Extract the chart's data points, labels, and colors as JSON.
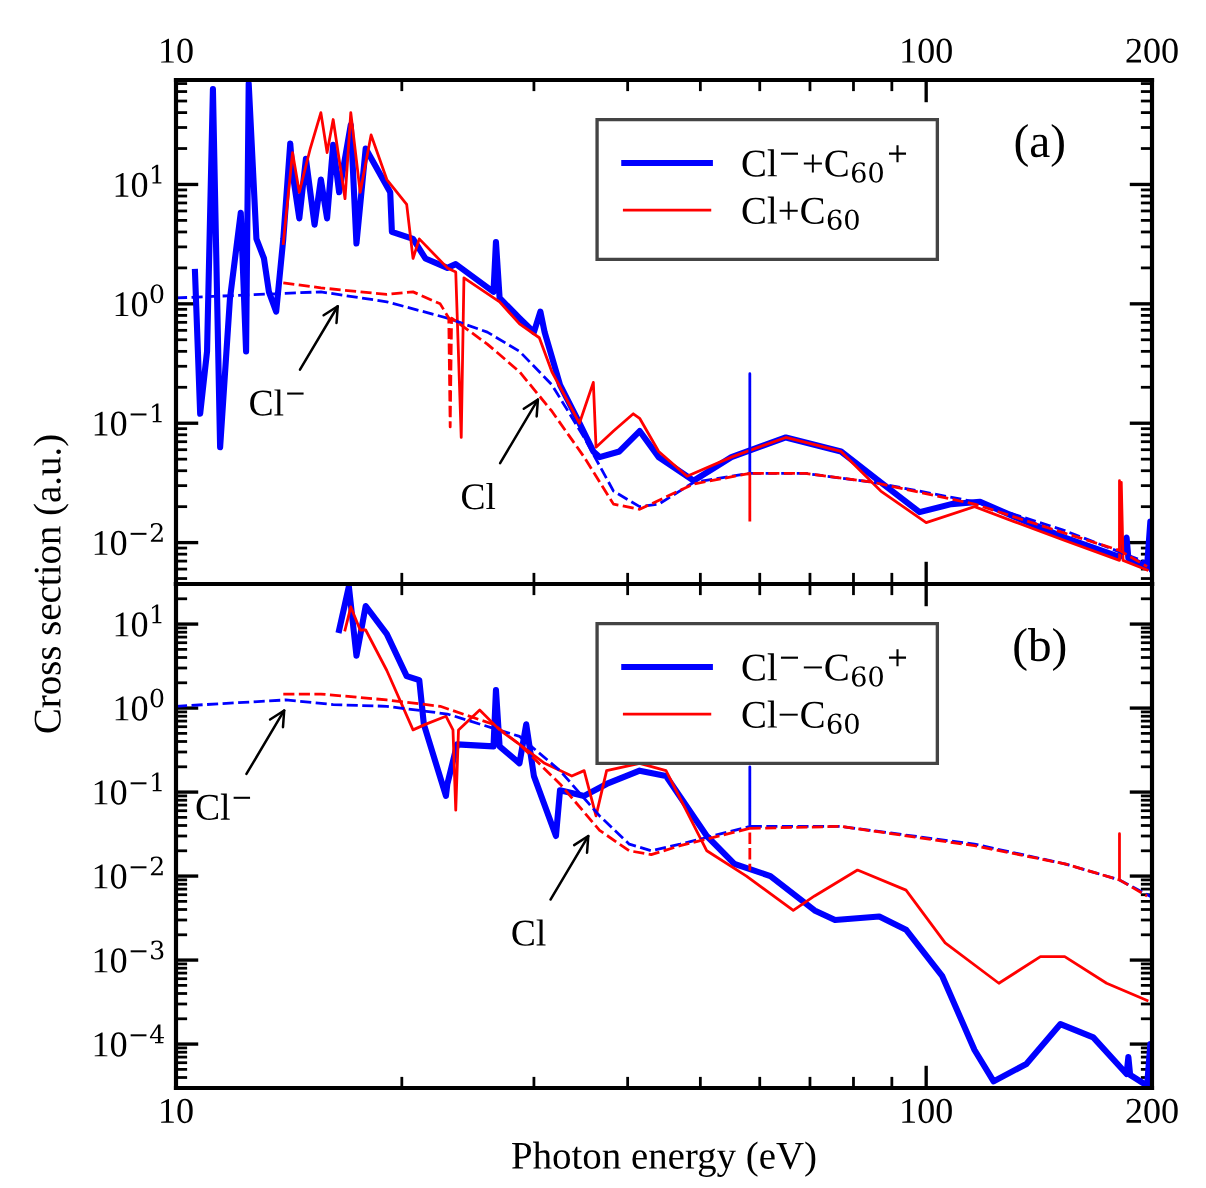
{
  "chart_data": [
    {
      "type": "line",
      "xlim": [
        10,
        200
      ],
      "xticks": [
        10,
        100,
        200
      ],
      "ylim": [
        0.0045,
        75
      ],
      "log": "xy",
      "grid": false,
      "legend": "top right",
      "marker": "none",
      "ylabel": "Cross section (a.u.)",
      "yticks": [
        {
          "value": 0.01,
          "label": "10$^{−2}$"
        },
        {
          "value": 0.1,
          "label": "10$^{−1}$"
        },
        {
          "value": 1,
          "label": "10$^{0}$"
        },
        {
          "value": 10,
          "label": "10$^{1}$"
        }
      ],
      "annotations": [
        "(a)",
        {
          "text": "Cl$^{−}$",
          "x": 16.5,
          "y": 1.0
        },
        {
          "text": "Cl",
          "x": 30.5,
          "y": 0.165
        }
      ],
      "series": [
        {
          "name": "Cl$^{−}$+C$_{60}$$^{+}$",
          "color": "#0000ff",
          "line_style": "solid",
          "x": [
            10.6,
            10.77,
            11.0,
            11.2,
            11.45,
            11.8,
            12.2,
            12.4,
            12.5,
            12.8,
            13.1,
            13.3,
            13.6,
            13.9,
            14.2,
            14.3,
            14.6,
            14.9,
            15.3,
            15.6,
            15.9,
            16.2,
            16.5,
            17.1,
            17.4,
            17.9,
            19.3,
            19.4,
            20.7,
            21.5,
            23.0,
            23.6,
            26.5,
            26.7,
            27.0,
            28.7,
            30.0,
            30.6,
            31.0,
            32.5,
            34.5,
            36.0,
            36.7,
            39.0,
            41.5,
            44,
            49,
            55,
            65,
            77,
            87,
            98,
            108,
            118,
            131,
            153,
            181,
            185,
            186,
            197,
            199,
            200
          ],
          "values": [
            1.85,
            0.12,
            0.4,
            63,
            0.063,
            1.1,
            5.8,
            0.4,
            70,
            3.5,
            2.4,
            1.26,
            0.86,
            3.5,
            22,
            12.6,
            5.2,
            16.4,
            4.6,
            11,
            5.2,
            21.5,
            8.6,
            31.6,
            3.2,
            20,
            8.6,
            4.0,
            3.5,
            2.4,
            2.0,
            2.15,
            1.26,
            3.3,
            1.12,
            0.76,
            0.58,
            0.86,
            0.58,
            0.21,
            0.1,
            0.058,
            0.052,
            0.058,
            0.086,
            0.052,
            0.033,
            0.052,
            0.076,
            0.058,
            0.032,
            0.018,
            0.021,
            0.022,
            0.0165,
            0.011,
            0.0076,
            0.011,
            0.0074,
            0.0063,
            0.015,
            0.006
          ]
        },
        {
          "name": "Cl+C$_{60}$",
          "color": "#ff0000",
          "line_style": "solid",
          "x": [
            13.9,
            14.3,
            14.6,
            15.1,
            15.6,
            15.9,
            16.2,
            16.8,
            17.1,
            17.6,
            18.2,
            19.1,
            20.3,
            20.7,
            21.1,
            23.0,
            23.6,
            24.0,
            24.2,
            27.0,
            28.7,
            30.5,
            31.7,
            34.5,
            36.0,
            36.3,
            38.3,
            40.7,
            41.5,
            44,
            48,
            55,
            65,
            77,
            87,
            100,
            116,
            131,
            153,
            181,
            182,
            183,
            197
          ],
          "values": [
            3.2,
            18.5,
            8.6,
            20,
            40,
            18.5,
            35,
            7.6,
            40,
            8.6,
            26,
            11,
            6.8,
            2.4,
            3.5,
            2.0,
            1.85,
            0.076,
            1.65,
            1.04,
            0.68,
            0.52,
            0.27,
            0.1,
            0.22,
            0.063,
            0.086,
            0.12,
            0.11,
            0.058,
            0.036,
            0.052,
            0.076,
            0.058,
            0.027,
            0.0147,
            0.02,
            0.015,
            0.0104,
            0.0071,
            0.032,
            0.0071,
            0.0059
          ]
        },
        {
          "color": "#0000ff",
          "line_style": "dashed",
          "x": [
            10,
            15.6,
            19.1,
            23,
            26,
            28.7,
            31.7,
            35,
            38.3,
            41.5,
            44,
            49,
            58.2,
            58.2,
            58.2,
            69,
            85,
            116,
            153,
            197
          ],
          "values": [
            1.12,
            1.26,
            1.04,
            0.76,
            0.58,
            0.4,
            0.21,
            0.076,
            0.027,
            0.02,
            0.021,
            0.032,
            0.038,
            0.26,
            0.038,
            0.038,
            0.032,
            0.022,
            0.0126,
            0.0068
          ]
        },
        {
          "color": "#ff0000",
          "line_style": "dashed",
          "x": [
            13.9,
            15.6,
            19.1,
            20.7,
            22.5,
            23.1,
            23.2,
            23.3,
            26,
            28.7,
            31.7,
            35,
            38.3,
            41.5,
            49,
            58.2,
            58.2,
            58.2,
            69,
            85,
            116,
            153,
            181,
            181,
            181,
            197
          ],
          "values": [
            1.5,
            1.36,
            1.2,
            1.26,
            1.0,
            0.76,
            0.093,
            0.76,
            0.46,
            0.27,
            0.126,
            0.052,
            0.021,
            0.019,
            0.031,
            0.038,
            0.015,
            0.038,
            0.038,
            0.032,
            0.021,
            0.012,
            0.0086,
            0.033,
            0.0086,
            0.0063
          ]
        }
      ]
    },
    {
      "type": "line",
      "xlim": [
        10,
        200
      ],
      "xticks": [
        10,
        100,
        200
      ],
      "ylim": [
        3e-05,
        30
      ],
      "log": "xy",
      "grid": false,
      "legend": "top right",
      "marker": "none",
      "xlabel": "Photon energy (eV)",
      "yticks": [
        {
          "value": 0.0001,
          "label": "10$^{−4}$"
        },
        {
          "value": 0.001,
          "label": "10$^{−3}$"
        },
        {
          "value": 0.01,
          "label": "10$^{−2}$"
        },
        {
          "value": 0.1,
          "label": "10$^{−1}$"
        },
        {
          "value": 1,
          "label": "10$^{0}$"
        },
        {
          "value": 10,
          "label": "10$^{1}$"
        }
      ],
      "annotations": [
        "(b)",
        {
          "text": "Cl$^{−}$",
          "x": 14.0,
          "y": 1.0
        },
        {
          "text": "Cl",
          "x": 35.6,
          "y": 0.032
        }
      ],
      "series": [
        {
          "name": "Cl$^{−}$−C$_{60}$$^{+}$",
          "color": "#0000ff",
          "line_style": "solid",
          "x": [
            16.5,
            17.0,
            17.4,
            17.9,
            19.1,
            20.3,
            21.1,
            21.4,
            22.9,
            23.0,
            23.7,
            26.5,
            26.7,
            27.0,
            28.7,
            29.3,
            30.0,
            32.1,
            32.5,
            35,
            37.5,
            41.5,
            45,
            51,
            55.5,
            62,
            71,
            75.6,
            86.6,
            94,
            105,
            116,
            123,
            136,
            151,
            167,
            185,
            186,
            187,
            197,
            199,
            200
          ],
          "values": [
            8.5,
            28,
            4.2,
            16.4,
            7.6,
            2.4,
            2.15,
            0.64,
            0.09,
            0.125,
            0.37,
            0.35,
            1.64,
            0.35,
            0.22,
            0.64,
            0.155,
            0.03,
            0.105,
            0.09,
            0.125,
            0.18,
            0.155,
            0.03,
            0.014,
            0.01,
            0.0039,
            0.003,
            0.0033,
            0.0023,
            0.00065,
            8.5e-05,
            3.6e-05,
            5.8e-05,
            0.000173,
            0.00012,
            4.4e-05,
            7e-05,
            4.3e-05,
            3.2e-05,
            0.0001,
            3.3e-05
          ]
        },
        {
          "name": "Cl−C$_{60}$",
          "color": "#ff0000",
          "line_style": "solid",
          "x": [
            16.8,
            17.1,
            17.6,
            17.9,
            19.1,
            20.7,
            21.5,
            22.9,
            23.4,
            23.6,
            23.8,
            25.4,
            27,
            28.7,
            31,
            33.7,
            35,
            36.3,
            37.5,
            41.5,
            45,
            51,
            57.6,
            66.5,
            71,
            81,
            94,
            106,
            125,
            142,
            153,
            174,
            197
          ],
          "values": [
            8.5,
            16,
            8.5,
            8.5,
            2.8,
            0.55,
            0.64,
            0.8,
            0.55,
            0.061,
            0.55,
            0.95,
            0.55,
            0.37,
            0.22,
            0.155,
            0.18,
            0.052,
            0.18,
            0.22,
            0.18,
            0.02,
            0.01,
            0.0039,
            0.0058,
            0.0118,
            0.0068,
            0.0016,
            0.00053,
            0.0011,
            0.0011,
            0.00053,
            0.00033
          ]
        },
        {
          "color": "#0000ff",
          "line_style": "dashed",
          "x": [
            10,
            14,
            16.2,
            19.1,
            23,
            28.7,
            32.5,
            36.7,
            40.2,
            43,
            47,
            58.2,
            58.2,
            58.2,
            77,
            116,
            153,
            181,
            200
          ],
          "values": [
            1.05,
            1.25,
            1.1,
            1.05,
            0.85,
            0.46,
            0.18,
            0.052,
            0.024,
            0.02,
            0.024,
            0.039,
            0.2,
            0.039,
            0.039,
            0.024,
            0.014,
            0.009,
            0.0056
          ]
        },
        {
          "color": "#ff0000",
          "line_style": "dashed",
          "x": [
            13.9,
            15.6,
            19.1,
            22.5,
            26.5,
            28.7,
            32.5,
            36.7,
            40.2,
            43,
            47,
            58.2,
            58.2,
            58.2,
            77,
            116,
            153,
            181,
            181,
            181,
            197
          ],
          "values": [
            1.47,
            1.47,
            1.25,
            1.05,
            0.64,
            0.37,
            0.125,
            0.035,
            0.02,
            0.018,
            0.023,
            0.037,
            0.012,
            0.037,
            0.039,
            0.023,
            0.014,
            0.009,
            0.032,
            0.009,
            0.0058
          ]
        }
      ]
    }
  ]
}
